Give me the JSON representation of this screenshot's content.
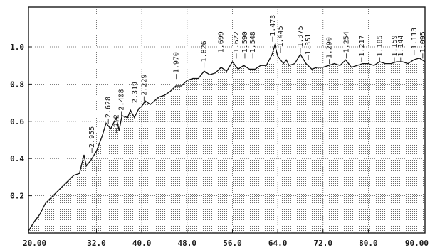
{
  "chart_data": {
    "type": "line",
    "title": "",
    "xlabel": "",
    "ylabel": "",
    "xlim": [
      20,
      90
    ],
    "ylim": [
      0,
      1.15
    ],
    "x_ticks": [
      {
        "v": 20,
        "label": "20.00"
      },
      {
        "v": 32,
        "label": "32.0"
      },
      {
        "v": 40,
        "label": "40.0"
      },
      {
        "v": 48,
        "label": "48.0"
      },
      {
        "v": 56,
        "label": "56.0"
      },
      {
        "v": 64,
        "label": "64.0"
      },
      {
        "v": 72,
        "label": "72.0"
      },
      {
        "v": 80,
        "label": "80.0"
      },
      {
        "v": 90,
        "label": "90.00"
      }
    ],
    "y_ticks": [
      {
        "v": 0.2,
        "label": "0.2"
      },
      {
        "v": 0.4,
        "label": "0.4"
      },
      {
        "v": 0.6,
        "label": "0.6"
      },
      {
        "v": 0.8,
        "label": "0.8"
      },
      {
        "v": 1.0,
        "label": "1.0"
      }
    ],
    "grid": true,
    "fill": "dotted",
    "series": [
      {
        "x": [
          20,
          21,
          22,
          23,
          24,
          25,
          26,
          27,
          28,
          29,
          29.8,
          30.2,
          31,
          32,
          33,
          33.7,
          34.5,
          35.5,
          36,
          36.5,
          37.5,
          38,
          38.7,
          39.5,
          40,
          40.6,
          41.5,
          43,
          44,
          45,
          46,
          47,
          48,
          49,
          50,
          51,
          52,
          53,
          54,
          55,
          56,
          57,
          58,
          59,
          60,
          61,
          62,
          63,
          63.5,
          64,
          65,
          65.5,
          66,
          67,
          68,
          69,
          70,
          71,
          72,
          73,
          74,
          75,
          76,
          77,
          78,
          79,
          80,
          81,
          82,
          83,
          84,
          85,
          86,
          87,
          88,
          89,
          90
        ],
        "y": [
          0.01,
          0.06,
          0.1,
          0.16,
          0.19,
          0.22,
          0.25,
          0.28,
          0.31,
          0.32,
          0.42,
          0.36,
          0.39,
          0.44,
          0.52,
          0.59,
          0.56,
          0.62,
          0.55,
          0.63,
          0.62,
          0.66,
          0.62,
          0.67,
          0.68,
          0.71,
          0.69,
          0.73,
          0.74,
          0.76,
          0.79,
          0.79,
          0.82,
          0.83,
          0.83,
          0.87,
          0.85,
          0.86,
          0.89,
          0.87,
          0.92,
          0.88,
          0.9,
          0.88,
          0.88,
          0.9,
          0.9,
          0.96,
          1.01,
          0.95,
          0.91,
          0.93,
          0.9,
          0.91,
          0.96,
          0.91,
          0.88,
          0.89,
          0.89,
          0.9,
          0.91,
          0.9,
          0.93,
          0.89,
          0.9,
          0.91,
          0.91,
          0.9,
          0.92,
          0.91,
          0.91,
          0.92,
          0.92,
          0.91,
          0.93,
          0.94,
          0.92
        ]
      }
    ],
    "annotations": [
      {
        "x": 31.2,
        "y": 0.42,
        "label": "2.955"
      },
      {
        "x": 34.1,
        "y": 0.58,
        "label": "2.628"
      },
      {
        "x": 35.5,
        "y": 0.53,
        "label": "2.2"
      },
      {
        "x": 36.4,
        "y": 0.62,
        "label": "2.408"
      },
      {
        "x": 38.8,
        "y": 0.66,
        "label": "2.319"
      },
      {
        "x": 40.4,
        "y": 0.7,
        "label": "2.229"
      },
      {
        "x": 46.1,
        "y": 0.82,
        "label": "1.970"
      },
      {
        "x": 51.0,
        "y": 0.88,
        "label": "1.826"
      },
      {
        "x": 54.0,
        "y": 0.93,
        "label": "1.699"
      },
      {
        "x": 56.7,
        "y": 0.93,
        "label": "1.622"
      },
      {
        "x": 58.2,
        "y": 0.93,
        "label": "1.590"
      },
      {
        "x": 59.6,
        "y": 0.93,
        "label": "1.548"
      },
      {
        "x": 63.1,
        "y": 1.02,
        "label": "1.473"
      },
      {
        "x": 64.5,
        "y": 0.96,
        "label": "1.445"
      },
      {
        "x": 68.0,
        "y": 0.96,
        "label": "1.375"
      },
      {
        "x": 69.4,
        "y": 0.92,
        "label": "1.351"
      },
      {
        "x": 73.1,
        "y": 0.9,
        "label": "1.290"
      },
      {
        "x": 76.1,
        "y": 0.93,
        "label": "1.254"
      },
      {
        "x": 78.8,
        "y": 0.91,
        "label": "1.217"
      },
      {
        "x": 82.0,
        "y": 0.91,
        "label": "1.185"
      },
      {
        "x": 84.6,
        "y": 0.91,
        "label": "1.159"
      },
      {
        "x": 85.7,
        "y": 0.91,
        "label": "1.144"
      },
      {
        "x": 88.1,
        "y": 0.95,
        "label": "1.113"
      },
      {
        "x": 89.6,
        "y": 0.93,
        "label": "1.095"
      }
    ]
  }
}
